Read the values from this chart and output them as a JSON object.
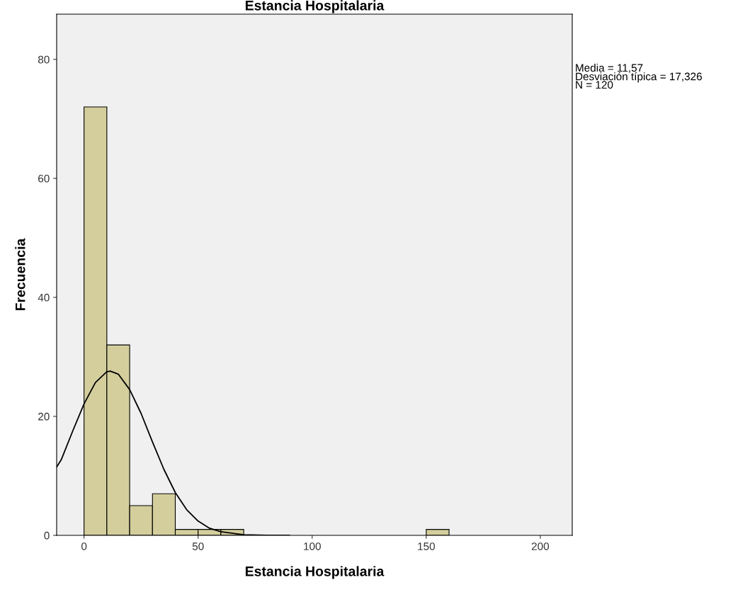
{
  "chart_data": {
    "type": "histogram",
    "title": "Estancia Hospitalaria",
    "xlabel": "Estancia Hospitalaria",
    "ylabel": "Frecuencia",
    "bins": [
      0,
      10,
      20,
      30,
      40,
      50,
      60,
      70,
      80,
      90,
      100,
      110,
      120,
      130,
      140,
      150,
      160
    ],
    "values": [
      72,
      32,
      5,
      7,
      1,
      1,
      1,
      0,
      0,
      0,
      0,
      0,
      0,
      0,
      0,
      1
    ],
    "color": "#d3ce9c",
    "series": [
      {
        "type": "line",
        "color": "#000000",
        "x": [
          -12,
          -10,
          -5,
          0,
          5,
          10,
          11.57,
          15,
          20,
          25,
          30,
          35,
          40,
          45,
          50,
          55,
          60,
          70,
          80,
          90
        ],
        "values": [
          11.5,
          12.7,
          17.5,
          22.1,
          25.7,
          27.5,
          27.6,
          27.1,
          24.5,
          20.5,
          15.7,
          11.1,
          7.2,
          4.3,
          2.4,
          1.2,
          0.6,
          0.1,
          0,
          0
        ]
      }
    ],
    "xlim": [
      -12,
      214
    ],
    "ylim": [
      0,
      87.6
    ],
    "xticks": [
      0,
      50,
      100,
      150,
      200
    ],
    "yticks": [
      0,
      20,
      40,
      60,
      80
    ],
    "annotations": [
      "Media = 11,57",
      "Desviación típica = 17,326",
      "N = 120"
    ],
    "grid": false,
    "legend": false
  }
}
